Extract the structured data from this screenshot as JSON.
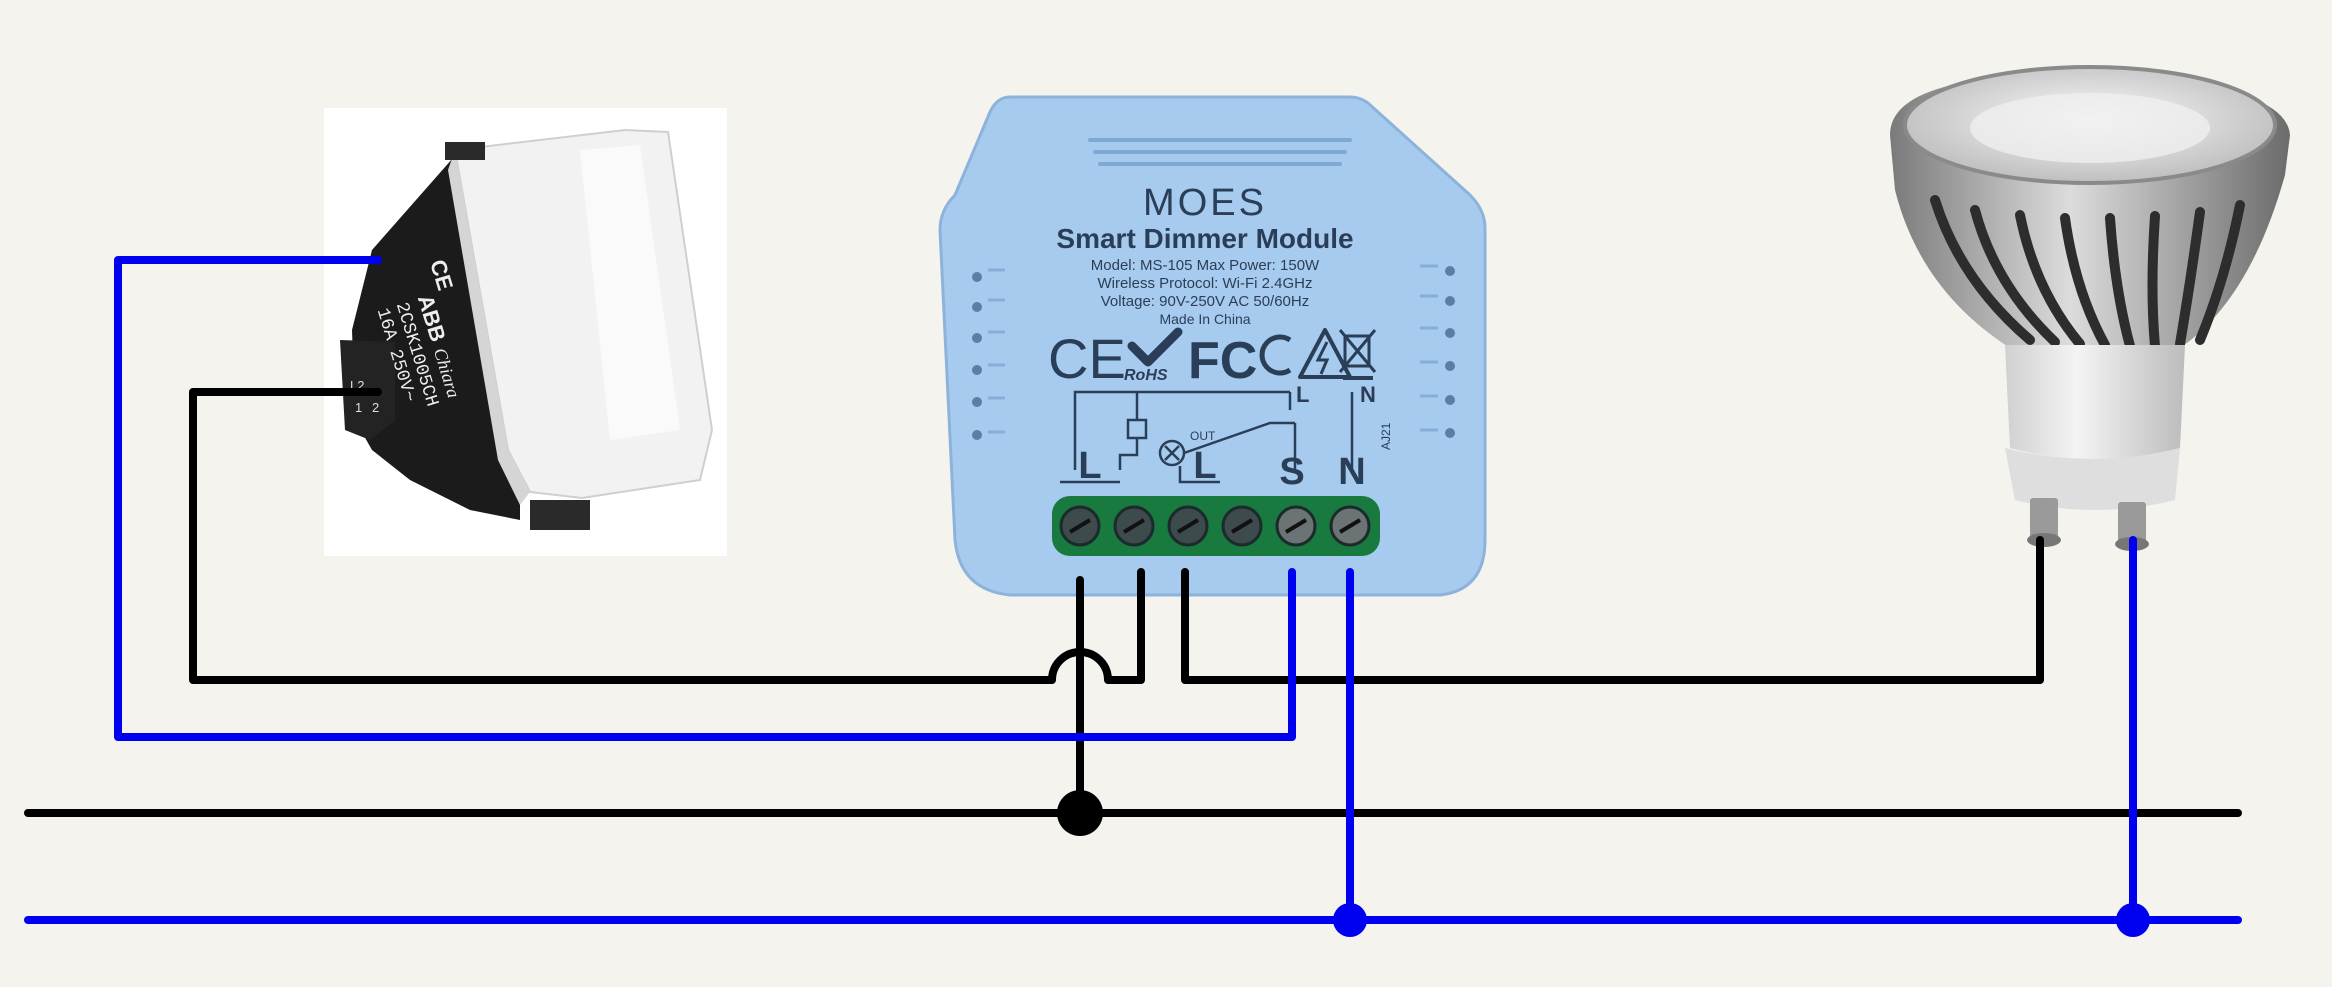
{
  "colors": {
    "background": "#f4f3ee",
    "live_wire": "#000000",
    "neutral_wire": "#0000f0",
    "module_body": "#a6cbef",
    "module_text": "#2b3e57",
    "terminal_block": "#187a3e"
  },
  "switch": {
    "icon": "rocker-switch-icon",
    "ce_mark": "CE",
    "brand": "ABB",
    "series": "Chiara",
    "model_code": "2CSK1005CH",
    "rating": "16A 250V~",
    "terminal_labels": [
      "L2",
      "1",
      "2"
    ]
  },
  "module": {
    "brand": "MOES",
    "title": "Smart Dimmer Module",
    "spec_lines": [
      "Model: MS-105 Max Power: 150W",
      "Wireless Protocol: Wi-Fi 2.4GHz",
      "Voltage: 90V-250V AC 50/60Hz",
      "Made In China"
    ],
    "cert_marks": [
      "CE",
      "RoHS",
      "FC"
    ],
    "schematic_labels": {
      "top_l": "L",
      "top_n": "N",
      "out": "OUT",
      "code": "AJ21"
    },
    "terminal_labels": [
      "L",
      "L",
      "S",
      "N"
    ],
    "terminal_count": 6
  },
  "lamp": {
    "icon": "gu10-led-bulb-icon"
  }
}
